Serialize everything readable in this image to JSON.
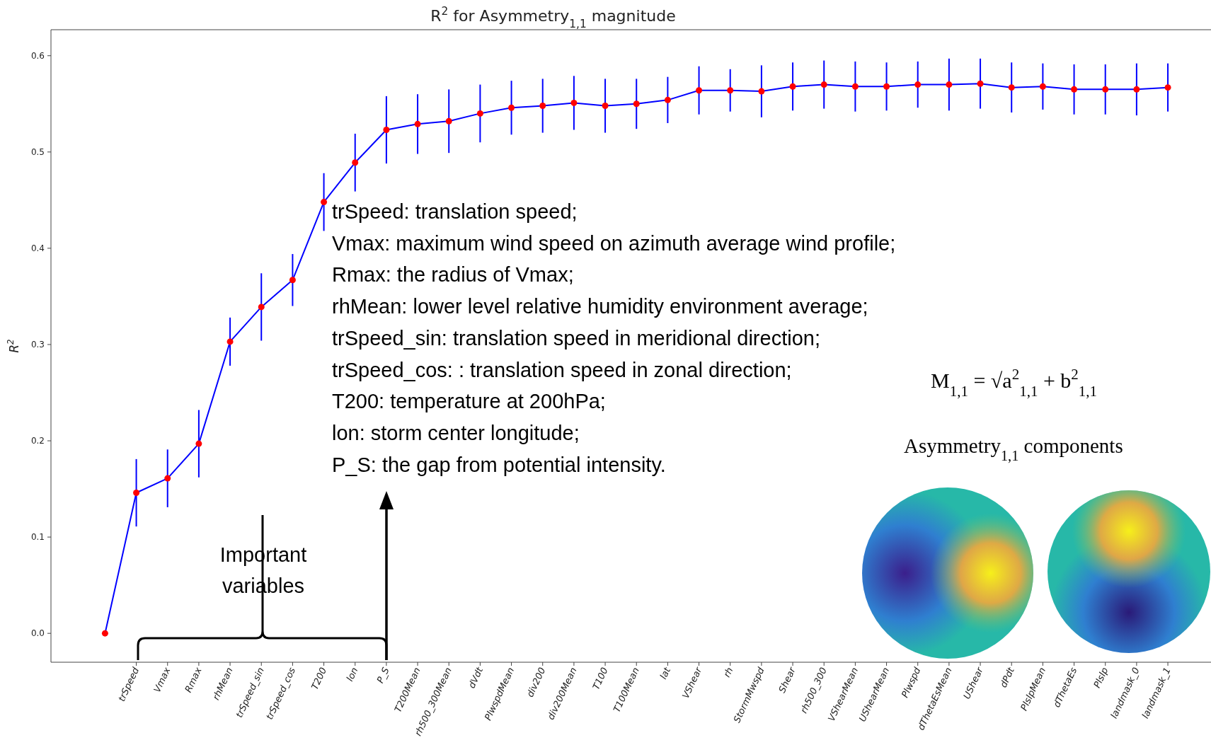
{
  "chart_data": {
    "type": "line",
    "title": "R$^{2}$ for Asymmetry$_{1,1}$ magnitude",
    "ylabel": "R$^{2}$",
    "categories": [
      null,
      "trSpeed",
      "Vmax",
      "Rmax",
      "rhMean",
      "trSpeed_sin",
      "trSpeed_cos",
      "T200",
      "lon",
      "P_S",
      "T200Mean",
      "rh500_300Mean",
      "dVdt",
      "PlwspdMean",
      "div200",
      "div200Mean",
      "T100",
      "T100Mean",
      "lat",
      "VShear",
      "rh",
      "StormMwspd",
      "Shear",
      "rh500_300",
      "VShearMean",
      "UShearMean",
      "Plwspd",
      "dThetaEsMean",
      "UShear",
      "dPdt",
      "PlslpMean",
      "dThetaEs",
      "Plslp",
      "landmask_0",
      "landmask_1"
    ],
    "series": [
      {
        "color": "#0000ff",
        "colors": [
          "#ff0000",
          "#ff0000",
          "#ff0000",
          "#ff0000",
          "#ff0000",
          "#ff0000",
          "#ff0000",
          "#ff0000",
          "#ff0000",
          "#ff0000",
          "#ff0000",
          "#ff0000",
          "#ff0000",
          "#ff0000",
          "#ff0000",
          "#ff0000",
          "#ff0000",
          "#ff0000",
          "#ff0000",
          "#ff0000",
          "#ff0000",
          "#ff0000",
          "#ff0000",
          "#ff0000",
          "#ff0000",
          "#ff0000",
          "#ff0000",
          "#ff0000",
          "#ff0000",
          "#ff0000",
          "#ff0000",
          "#ff0000",
          "#ff0000",
          "#ff0000",
          "#ff0000"
        ],
        "values": [
          0,
          0.146,
          0.161,
          0.197,
          0.303,
          0.339,
          0.367,
          0.448,
          0.489,
          0.523,
          0.529,
          0.532,
          0.54,
          0.546,
          0.548,
          0.551,
          0.548,
          0.55,
          0.554,
          0.564,
          0.564,
          0.563,
          0.568,
          0.57,
          0.568,
          0.568,
          0.57,
          0.57,
          0.571,
          0.567,
          0.568,
          0.565,
          0.565,
          0.565,
          0.567
        ],
        "errors": [
          null,
          0.035,
          0.03,
          0.035,
          0.025,
          0.035,
          0.027,
          0.03,
          0.03,
          0.035,
          0.031,
          0.033,
          0.03,
          0.028,
          0.028,
          0.028,
          0.028,
          0.026,
          0.024,
          0.025,
          0.022,
          0.027,
          0.025,
          0.025,
          0.026,
          0.025,
          0.024,
          0.027,
          0.026,
          0.026,
          0.024,
          0.026,
          0.026,
          0.027,
          0.025
        ]
      }
    ],
    "ylim": [
      -0.03,
      0.627
    ],
    "yticks": [
      {
        "value": 0,
        "label": "0.0"
      },
      0.1,
      0.2,
      0.3,
      0.4,
      0.5,
      0.6
    ],
    "marker": "circle",
    "line_style": "solid",
    "annotations": [
      "trSpeed: translation speed;",
      "Vmax: maximum wind speed on azimuth average wind profile;",
      "Rmax: the radius of Vmax;",
      "rhMean: lower level relative humidity environment average;",
      "trSpeed_sin: translation speed in meridional direction;",
      "trSpeed_cos: : translation speed in zonal direction;",
      "T200: temperature at 200hPa;",
      "lon: storm center longitude;",
      "P_S: the gap from potential intensity.",
      "Important variables",
      "M$_{1,1}$ = √a$^{2}$$_{1,1}$ + b$^{2}$$_{1,1}$",
      "Asymmetry$_{1,1}$ components"
    ]
  }
}
